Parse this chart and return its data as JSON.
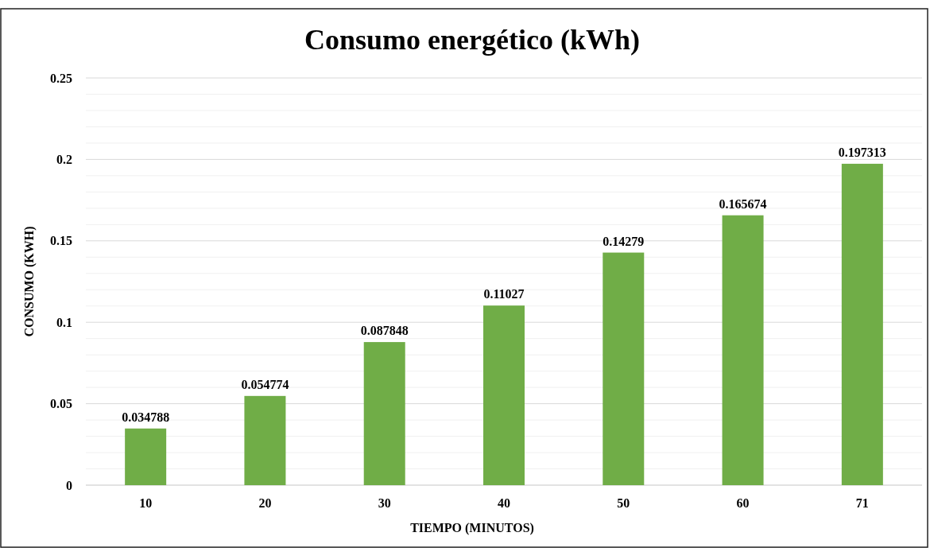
{
  "chart_data": {
    "type": "bar",
    "title": "Consumo energético (kWh)",
    "xlabel": "TIEMPO (MINUTOS)",
    "ylabel": "CONSUMO (KWH)",
    "categories": [
      "10",
      "20",
      "30",
      "40",
      "50",
      "60",
      "71"
    ],
    "values": [
      0.034788,
      0.054774,
      0.087848,
      0.11027,
      0.14279,
      0.165674,
      0.197313
    ],
    "color": "#70ad47",
    "data_labels": true,
    "ylim": [
      0,
      0.25
    ],
    "yticks": [
      0,
      {
        "value": 0.01,
        "label": null
      },
      {
        "value": 0.02,
        "label": null
      },
      {
        "value": 0.03,
        "label": null
      },
      {
        "value": 0.04,
        "label": null
      },
      0.05,
      {
        "value": 0.06,
        "label": null
      },
      {
        "value": 0.07,
        "label": null
      },
      {
        "value": 0.08,
        "label": null
      },
      {
        "value": 0.09,
        "label": null
      },
      0.1,
      {
        "value": 0.11,
        "label": null
      },
      {
        "value": 0.12,
        "label": null
      },
      {
        "value": 0.13,
        "label": null
      },
      {
        "value": 0.14,
        "label": null
      },
      0.15,
      {
        "value": 0.16,
        "label": null
      },
      {
        "value": 0.17,
        "label": null
      },
      {
        "value": 0.18,
        "label": null
      },
      {
        "value": 0.19,
        "label": null
      },
      0.2,
      {
        "value": 0.21,
        "label": null
      },
      {
        "value": 0.22,
        "label": null
      },
      {
        "value": 0.23,
        "label": null
      },
      {
        "value": 0.24,
        "label": null
      },
      0.25
    ],
    "grid": true
  }
}
